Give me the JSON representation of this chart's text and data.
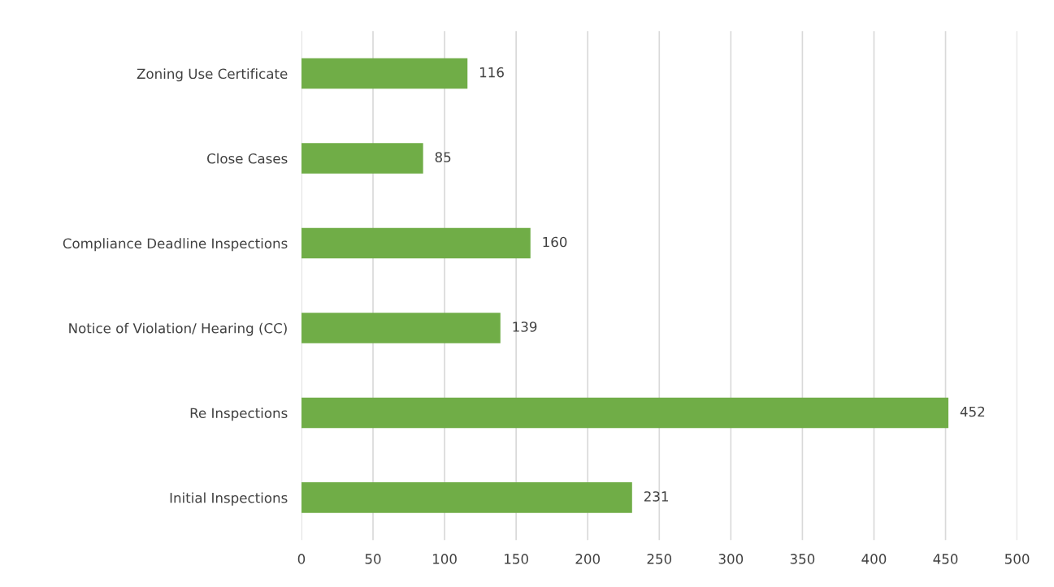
{
  "chart_data": {
    "type": "bar",
    "orientation": "horizontal",
    "categories": [
      "Zoning Use Certificate",
      "Close Cases",
      "Compliance Deadline Inspections",
      "Notice of Violation/ Hearing (CC)",
      "Re Inspections",
      "Initial Inspections"
    ],
    "values": [
      116,
      85,
      160,
      139,
      452,
      231
    ],
    "color": "#70ad47",
    "xlim": [
      0,
      500
    ],
    "xticks": [
      0,
      50,
      100,
      150,
      200,
      250,
      300,
      350,
      400,
      450,
      500
    ],
    "grid": "x",
    "data_labels": true
  }
}
